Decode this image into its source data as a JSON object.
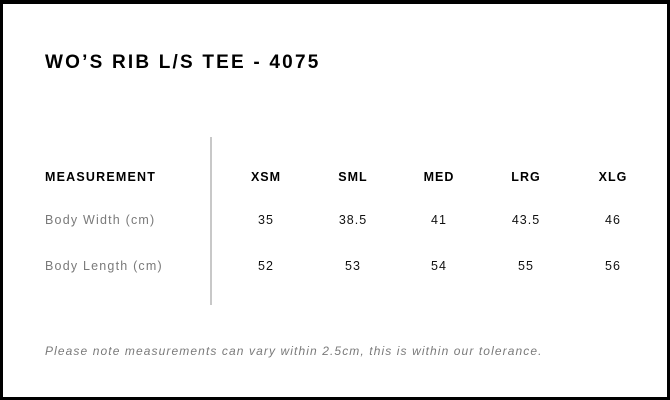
{
  "title": "WO’S RIB L/S TEE - 4075",
  "table": {
    "header_label": "MEASUREMENT",
    "sizes": [
      "XSM",
      "SML",
      "MED",
      "LRG",
      "XLG"
    ],
    "rows": [
      {
        "label": "Body Width (cm)",
        "values": [
          "35",
          "38.5",
          "41",
          "43.5",
          "46"
        ]
      },
      {
        "label": "Body Length (cm)",
        "values": [
          "52",
          "53",
          "54",
          "55",
          "56"
        ]
      }
    ]
  },
  "note": "Please note measurements can vary within 2.5cm, this is within our tolerance."
}
